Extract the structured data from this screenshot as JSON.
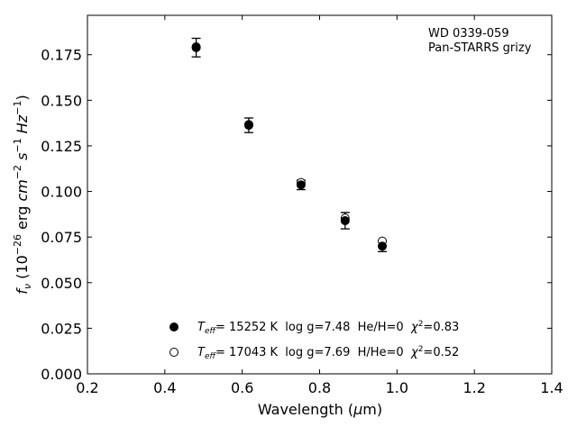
{
  "chart_data": {
    "type": "scatter",
    "xlabel": "Wavelength (μm)",
    "ylabel": "f_ν (10^-26 erg cm^-2 s^-1 Hz^-1)",
    "xlim": [
      0.2,
      1.4
    ],
    "ylim": [
      0.0,
      0.1966
    ],
    "x_ticks": [
      "0.2",
      "0.4",
      "0.6",
      "0.8",
      "1.0",
      "1.2",
      "1.4"
    ],
    "y_ticks": [
      "0.000",
      "0.025",
      "0.050",
      "0.075",
      "0.100",
      "0.125",
      "0.150",
      "0.175"
    ],
    "grid": false,
    "legend_position": "bottom-center",
    "annotation_lines": [
      "WD 0339-059",
      "Pan-STARRS grizy"
    ],
    "series": [
      {
        "name": "Teff= 15252 K  log g=7.48  He/H=0  χ²=0.83",
        "marker": "filled-circle",
        "points": [
          {
            "x": 0.481,
            "y": 0.1789,
            "err": 0.0051
          },
          {
            "x": 0.617,
            "y": 0.1363,
            "err": 0.004
          },
          {
            "x": 0.752,
            "y": 0.1036,
            "err": 0.0026
          },
          {
            "x": 0.866,
            "y": 0.084,
            "err": 0.0045
          },
          {
            "x": 0.962,
            "y": 0.07,
            "err": 0.003
          }
        ]
      },
      {
        "name": "Teff= 17043 K  log g=7.69  H/He=0  χ²=0.52",
        "marker": "open-circle",
        "points": [
          {
            "x": 0.481,
            "y": 0.1793
          },
          {
            "x": 0.617,
            "y": 0.1367
          },
          {
            "x": 0.752,
            "y": 0.1049
          },
          {
            "x": 0.866,
            "y": 0.0854
          },
          {
            "x": 0.962,
            "y": 0.0728
          }
        ]
      }
    ]
  },
  "legend": [
    {
      "teff": "= 15252 K",
      "rest": "  log g=7.48  He/H=0  ",
      "chi": "=0.83"
    },
    {
      "teff": "= 17043 K",
      "rest": "  log g=7.69  H/He=0  ",
      "chi": "=0.52"
    }
  ]
}
